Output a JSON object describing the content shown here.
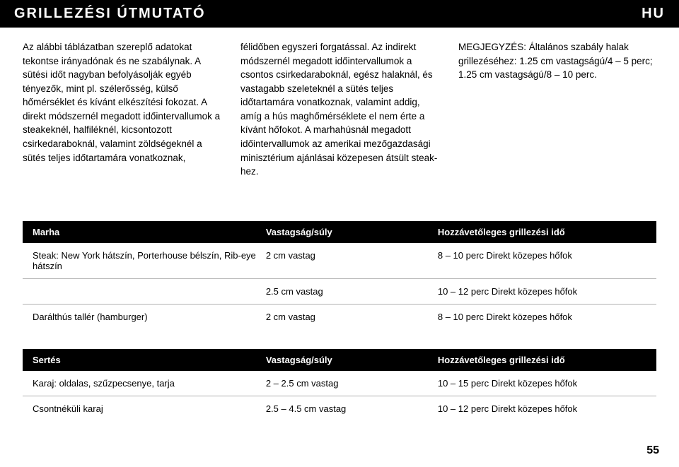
{
  "header": {
    "title": "GRILLEZÉSI ÚTMUTATÓ",
    "lang": "HU"
  },
  "intro": {
    "col1": "Az alábbi táblázatban szereplő adatokat tekontse irányadónak és ne szabálynak. A sütési időt nagyban befolyásolják egyéb tényezők, mint pl. szélerősség, külső hőmérséklet és kívánt elkészítési fokozat. A direkt módszernél megadott időintervallumok a steakeknél, halfiléknél, kicsontozott csirkedaraboknál, valamint zöldségeknél a sütés teljes időtartamára vonatkoznak,",
    "col2": "félidőben egyszeri forgatással. Az indirekt módszernél megadott időintervallumok a csontos csirkedaraboknál, egész halaknál, és vastagabb szeleteknél a sütés teljes időtartamára vonatkoznak, valamint addig, amíg a hús maghőmérséklete el nem érte a kívánt hőfokot. A marhahúsnál megadott időintervallumok az amerikai mezőgazdasági minisztérium ajánlásai közepesen átsült steak-hez.",
    "col3": "MEGJEGYZÉS: Általános szabály halak grillezéséhez: 1.25 cm vastagságú/4 – 5 perc; 1.25 cm vastagságú/8 – 10 perc."
  },
  "table1": {
    "header": {
      "a": "Marha",
      "b": "Vastagság/súly",
      "c": "Hozzávetőleges grillezési idő"
    },
    "rows": [
      {
        "a": "Steak: New York hátszín, Porterhouse bélszín, Rib-eye hátszín",
        "b": "2 cm vastag",
        "c": "8 – 10 perc Direkt közepes hőfok"
      },
      {
        "a": "",
        "b": "2.5 cm vastag",
        "c": "10 – 12 perc Direkt közepes hőfok"
      },
      {
        "a": "Darálthús tallér (hamburger)",
        "b": "2 cm vastag",
        "c": "8 – 10 perc Direkt közepes hőfok"
      }
    ]
  },
  "table2": {
    "header": {
      "a": "Sertés",
      "b": "Vastagság/súly",
      "c": "Hozzávetőleges grillezési idő"
    },
    "rows": [
      {
        "a": "Karaj: oldalas, szűzpecsenye, tarja",
        "b": "2 – 2.5 cm vastag",
        "c": "10 – 15 perc Direkt közepes hőfok"
      },
      {
        "a": "Csontnéküli karaj",
        "b": "2.5 – 4.5 cm vastag",
        "c": "10 – 12 perc Direkt közepes hőfok"
      }
    ]
  },
  "page_number": "55"
}
